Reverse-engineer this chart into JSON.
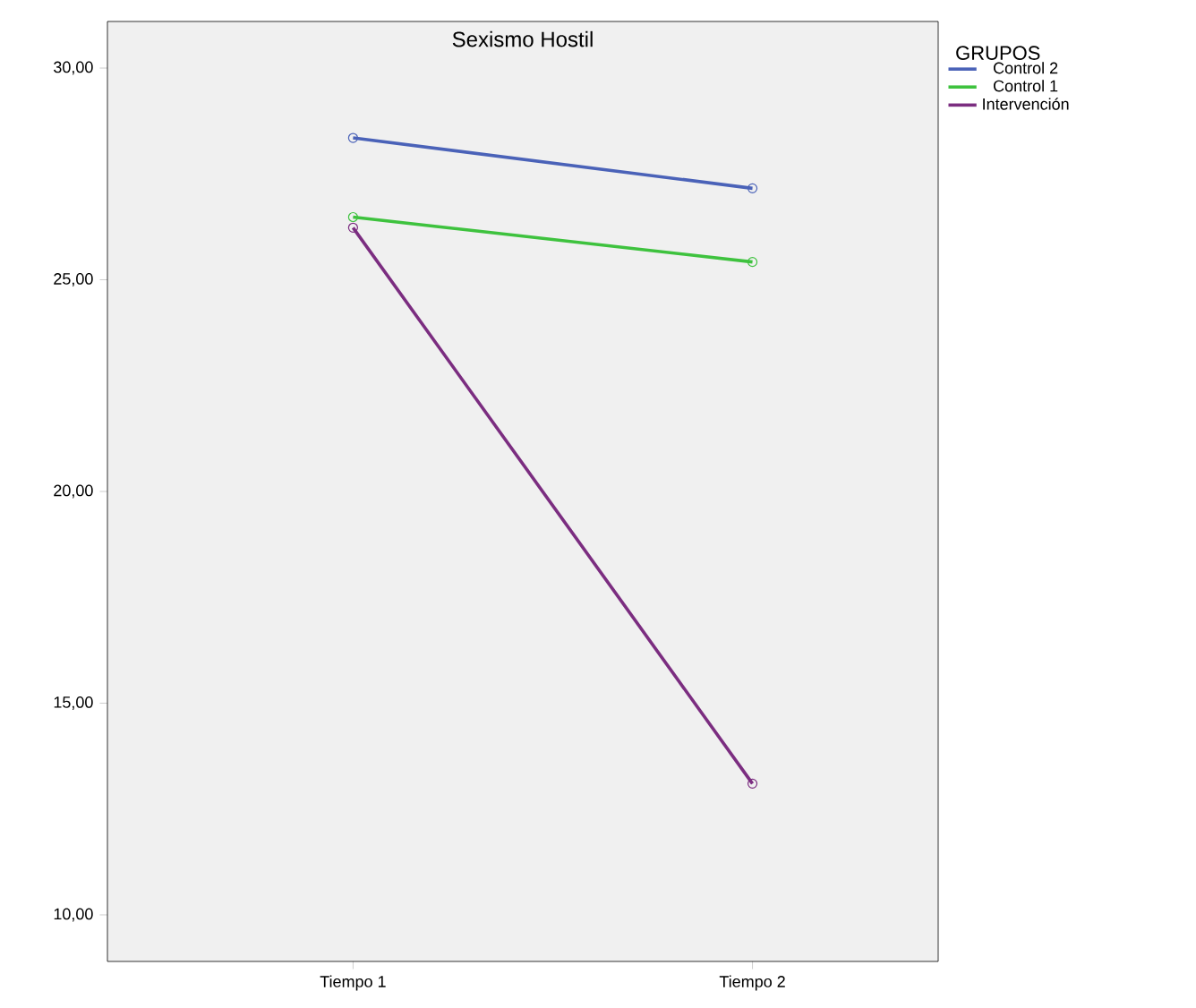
{
  "chart_data": {
    "type": "line",
    "title": "Sexismo Hostil",
    "legend_title": "GRUPOS",
    "categories": [
      "Tiempo 1",
      "Tiempo 2"
    ],
    "series": [
      {
        "name": "Control 2",
        "color": "#4a62b8",
        "values": [
          28.35,
          27.16
        ]
      },
      {
        "name": "Control 1",
        "color": "#3ec23e",
        "values": [
          26.48,
          25.42
        ]
      },
      {
        "name": "Intervención",
        "color": "#7b2d80",
        "values": [
          26.23,
          13.1
        ]
      }
    ],
    "ylim": [
      8.9,
      31.1
    ],
    "yticks": [
      {
        "value": 10,
        "label": "10,00"
      },
      {
        "value": 15,
        "label": "15,00"
      },
      {
        "value": 20,
        "label": "20,00"
      },
      {
        "value": 25,
        "label": "25,00"
      },
      {
        "value": 30,
        "label": "30,00"
      }
    ],
    "grid": false,
    "legend": "top right",
    "marker": "circle",
    "line_style": "solid"
  }
}
